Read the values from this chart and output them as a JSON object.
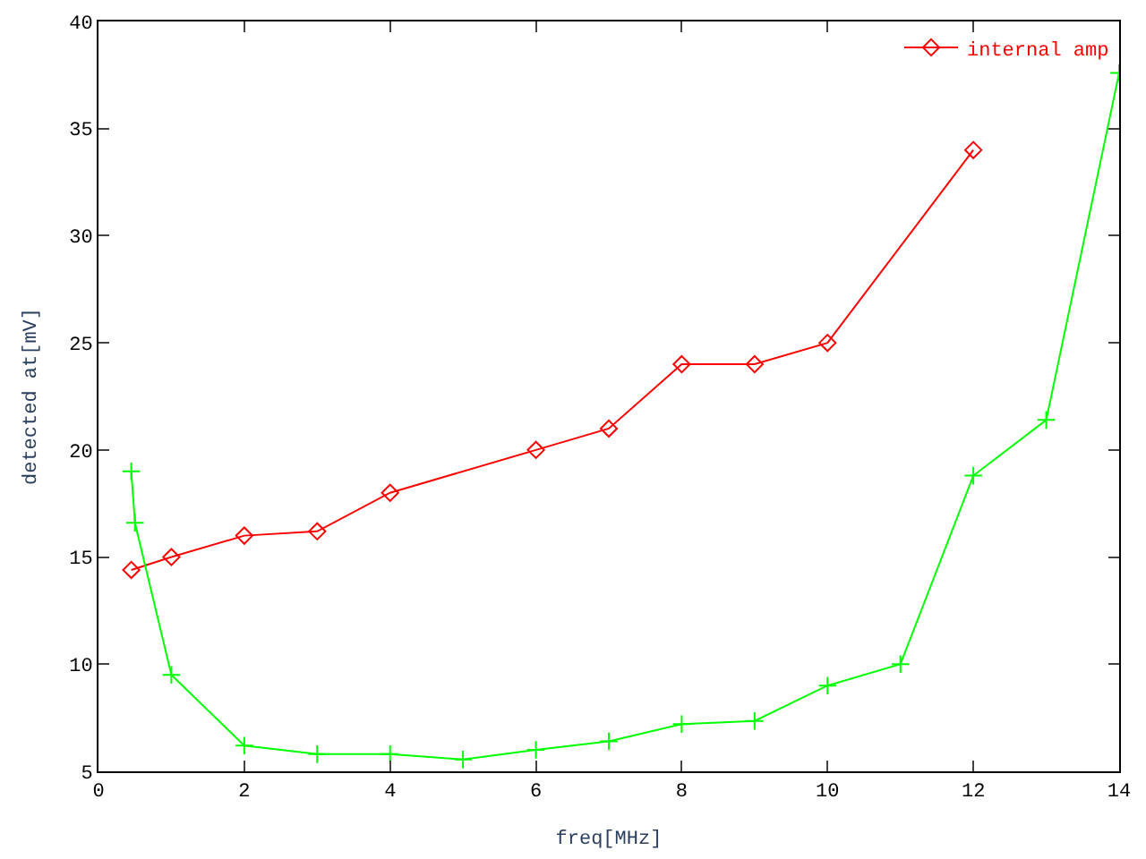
{
  "chart_data": {
    "type": "line",
    "xlabel": "freq[MHz]",
    "ylabel": "detected at[mV]",
    "xlim": [
      0,
      14
    ],
    "xticks": [
      0,
      2,
      4,
      6,
      8,
      10,
      12,
      14
    ],
    "ylim": [
      5,
      40
    ],
    "yticks": [
      5,
      10,
      15,
      20,
      25,
      30,
      35,
      40
    ],
    "grid": false,
    "legend": "top right",
    "line_style": "solid",
    "series": [
      {
        "name": "internal amp",
        "color": "#ff0000",
        "marker": "diamond",
        "x": [
          0.45,
          1,
          2,
          3,
          4,
          6,
          7,
          8,
          9,
          10,
          12
        ],
        "values": [
          14.4,
          15,
          16,
          16.2,
          18,
          20,
          21,
          24,
          24,
          25,
          34
        ]
      },
      {
        "color": "#00ff00",
        "marker": "cross",
        "x": [
          0.45,
          0.5,
          1,
          2,
          3,
          4,
          5,
          6,
          7,
          8,
          9,
          10,
          11,
          12,
          13,
          14
        ],
        "values": [
          19,
          16.6,
          9.5,
          6.2,
          5.8,
          5.8,
          5.55,
          6,
          6.4,
          7.2,
          7.35,
          9,
          10,
          18.8,
          21.4,
          37.6
        ]
      }
    ]
  }
}
